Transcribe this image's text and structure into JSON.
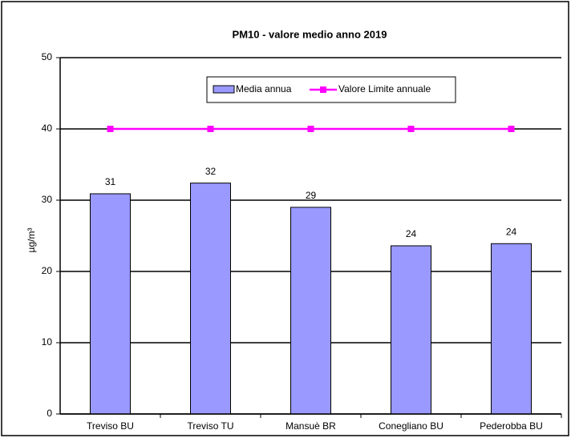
{
  "chart_data": {
    "type": "bar",
    "title": "PM10 - valore medio anno 2019",
    "y_label": "µg/m³",
    "categories": [
      "Treviso BU",
      "Treviso TU",
      "Mansuè BR",
      "Conegliano BU",
      "Pederobba BU"
    ],
    "series": [
      {
        "name": "Media annua",
        "type": "bar",
        "color": "#9999ff",
        "values": [
          30.9,
          32.4,
          29.0,
          23.6,
          23.9
        ],
        "value_labels": [
          "31",
          "32",
          "29",
          "24",
          "24"
        ]
      },
      {
        "name": "Valore Limite annuale",
        "type": "line",
        "color": "#ff00ff",
        "values": [
          40,
          40,
          40,
          40,
          40
        ]
      }
    ],
    "ylim": [
      0,
      50
    ],
    "yticks": [
      0,
      10,
      20,
      30,
      40,
      50
    ],
    "grid": true,
    "legend": "top"
  }
}
